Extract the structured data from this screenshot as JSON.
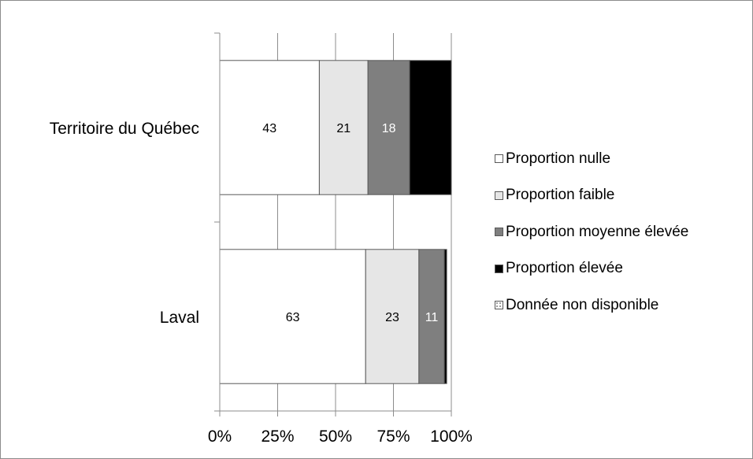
{
  "chart_data": {
    "type": "bar",
    "orientation": "horizontal",
    "stacked": true,
    "percent_stacked": true,
    "categories": [
      "Territoire du Québec",
      "Laval"
    ],
    "series": [
      {
        "name": "Proportion nulle",
        "color": "#ffffff",
        "values": [
          43,
          63
        ],
        "labels": [
          "43",
          "63"
        ],
        "label_color": "#000000"
      },
      {
        "name": "Proportion faible",
        "color": "#e6e6e6",
        "values": [
          21,
          23
        ],
        "labels": [
          "21",
          "23"
        ],
        "label_color": "#000000"
      },
      {
        "name": "Proportion moyenne élevée",
        "color": "#7f7f7f",
        "values": [
          18,
          11
        ],
        "labels": [
          "18",
          "11"
        ],
        "label_color": "#ffffff"
      },
      {
        "name": "Proportion élevée",
        "color": "#000000",
        "values": [
          18,
          1
        ],
        "labels": [
          "",
          ""
        ],
        "label_color": "#ffffff"
      },
      {
        "name": "Donnée non disponible",
        "color": "#ffffff",
        "pattern": "checker",
        "values": [
          0,
          0
        ],
        "labels": [
          "",
          ""
        ],
        "label_color": "#000000"
      }
    ],
    "x_ticks": [
      "0%",
      "25%",
      "50%",
      "75%",
      "100%"
    ],
    "xlim": [
      0,
      100
    ],
    "grid": true,
    "legend_position": "right"
  }
}
